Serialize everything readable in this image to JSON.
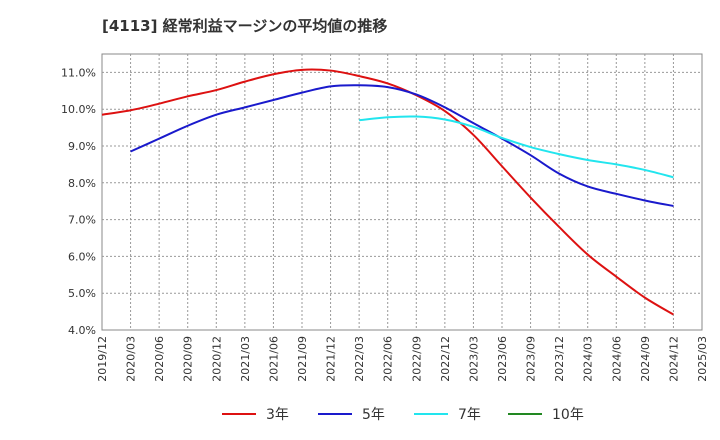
{
  "chart_data": {
    "type": "line",
    "title": "[4113]  経常利益マージンの平均値の推移",
    "xlabel": "",
    "ylabel": "",
    "x_ticks": [
      "2019/12",
      "2020/03",
      "2020/06",
      "2020/09",
      "2020/12",
      "2021/03",
      "2021/06",
      "2021/09",
      "2021/12",
      "2022/03",
      "2022/06",
      "2022/09",
      "2022/12",
      "2023/03",
      "2023/06",
      "2023/09",
      "2023/12",
      "2024/03",
      "2024/06",
      "2024/09",
      "2024/12",
      "2025/03"
    ],
    "y_ticks": [
      "4.0%",
      "5.0%",
      "6.0%",
      "7.0%",
      "8.0%",
      "9.0%",
      "10.0%",
      "11.0%"
    ],
    "ylim": [
      4.0,
      11.5
    ],
    "grid": true,
    "legend": "bottom",
    "series": [
      {
        "name": "3年",
        "color": "#dd1111",
        "x": [
          "2019/12",
          "2020/03",
          "2020/06",
          "2020/09",
          "2020/12",
          "2021/03",
          "2021/06",
          "2021/09",
          "2021/12",
          "2022/03",
          "2022/06",
          "2022/09",
          "2022/12",
          "2023/03",
          "2023/06",
          "2023/09",
          "2023/12",
          "2024/03",
          "2024/06",
          "2024/09",
          "2024/12"
        ],
        "values": [
          9.85,
          9.97,
          10.15,
          10.35,
          10.52,
          10.75,
          10.95,
          11.07,
          11.05,
          10.9,
          10.7,
          10.38,
          9.95,
          9.3,
          8.45,
          7.6,
          6.8,
          6.05,
          5.45,
          4.88,
          4.42
        ]
      },
      {
        "name": "5年",
        "color": "#1a1acc",
        "x": [
          "2020/03",
          "2020/06",
          "2020/09",
          "2020/12",
          "2021/03",
          "2021/06",
          "2021/09",
          "2021/12",
          "2022/03",
          "2022/06",
          "2022/09",
          "2022/12",
          "2023/03",
          "2023/06",
          "2023/09",
          "2023/12",
          "2024/03",
          "2024/06",
          "2024/09",
          "2024/12"
        ],
        "values": [
          8.85,
          9.2,
          9.55,
          9.85,
          10.05,
          10.25,
          10.45,
          10.62,
          10.65,
          10.6,
          10.4,
          10.05,
          9.62,
          9.2,
          8.75,
          8.25,
          7.9,
          7.7,
          7.52,
          7.37
        ]
      },
      {
        "name": "7年",
        "color": "#22e5ee",
        "x": [
          "2022/03",
          "2022/06",
          "2022/09",
          "2022/12",
          "2023/03",
          "2023/06",
          "2023/09",
          "2023/12",
          "2024/03",
          "2024/06",
          "2024/09",
          "2024/12"
        ],
        "values": [
          9.7,
          9.78,
          9.8,
          9.72,
          9.52,
          9.22,
          8.97,
          8.78,
          8.62,
          8.5,
          8.35,
          8.15
        ]
      },
      {
        "name": "10年",
        "color": "#228822",
        "x": [],
        "values": []
      }
    ]
  }
}
